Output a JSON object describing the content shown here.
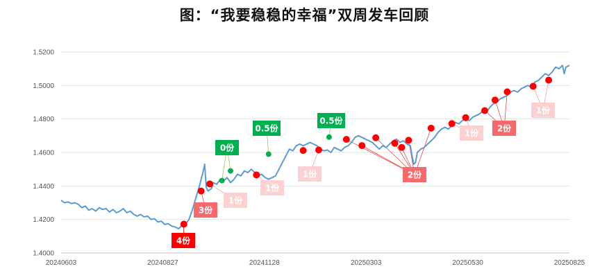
{
  "title": "图：“我要稳稳的幸福”双周发车回顾",
  "chart_data": {
    "type": "line",
    "ylim": [
      1.4,
      1.52
    ],
    "yticks": [
      "1.4000",
      "1.4200",
      "1.4400",
      "1.4600",
      "1.4800",
      "1.5000",
      "1.5200"
    ],
    "xticks": [
      "20240603",
      "20240827",
      "20241128",
      "20250303",
      "20250530",
      "20250825"
    ],
    "grid": "horizontal",
    "colors": {
      "line": "#5b9bd5",
      "buy": "#ff0000",
      "sell": "#00b050"
    },
    "series": [
      {
        "values": [
          [
            0,
            1.4315
          ],
          [
            2,
            1.43
          ],
          [
            4,
            1.4305
          ],
          [
            6,
            1.4295
          ],
          [
            8,
            1.43
          ],
          [
            10,
            1.429
          ],
          [
            12,
            1.427
          ],
          [
            14,
            1.428
          ],
          [
            16,
            1.4255
          ],
          [
            18,
            1.4265
          ],
          [
            20,
            1.425
          ],
          [
            22,
            1.427
          ],
          [
            24,
            1.426
          ],
          [
            26,
            1.4265
          ],
          [
            28,
            1.4245
          ],
          [
            30,
            1.426
          ],
          [
            32,
            1.424
          ],
          [
            34,
            1.425
          ],
          [
            36,
            1.4265
          ],
          [
            38,
            1.424
          ],
          [
            40,
            1.425
          ],
          [
            42,
            1.423
          ],
          [
            44,
            1.422
          ],
          [
            46,
            1.423
          ],
          [
            48,
            1.4215
          ],
          [
            50,
            1.422
          ],
          [
            52,
            1.42
          ],
          [
            54,
            1.4205
          ],
          [
            56,
            1.4185
          ],
          [
            58,
            1.419
          ],
          [
            60,
            1.417
          ],
          [
            62,
            1.4175
          ],
          [
            64,
            1.416
          ],
          [
            66,
            1.4155
          ],
          [
            68,
            1.4145
          ],
          [
            70,
            1.4165
          ],
          [
            72,
            1.4175
          ],
          [
            74,
            1.42
          ],
          [
            76,
            1.426
          ],
          [
            78,
            1.433
          ],
          [
            80,
            1.44
          ],
          [
            82,
            1.448
          ],
          [
            83,
            1.453
          ],
          [
            84,
            1.439
          ],
          [
            85,
            1.437
          ],
          [
            87,
            1.4385
          ],
          [
            88,
            1.442
          ],
          [
            90,
            1.441
          ],
          [
            92,
            1.444
          ],
          [
            94,
            1.443
          ],
          [
            96,
            1.445
          ],
          [
            98,
            1.442
          ],
          [
            100,
            1.444
          ],
          [
            102,
            1.447
          ],
          [
            104,
            1.446
          ],
          [
            106,
            1.449
          ],
          [
            108,
            1.448
          ],
          [
            110,
            1.45
          ],
          [
            112,
            1.448
          ],
          [
            114,
            1.446
          ],
          [
            116,
            1.447
          ],
          [
            118,
            1.445
          ],
          [
            120,
            1.444
          ],
          [
            122,
            1.445
          ],
          [
            124,
            1.446
          ],
          [
            126,
            1.45
          ],
          [
            128,
            1.454
          ],
          [
            130,
            1.458
          ],
          [
            132,
            1.462
          ],
          [
            134,
            1.461
          ],
          [
            136,
            1.464
          ],
          [
            138,
            1.465
          ],
          [
            140,
            1.464
          ],
          [
            142,
            1.465
          ],
          [
            144,
            1.466
          ],
          [
            146,
            1.465
          ],
          [
            148,
            1.464
          ],
          [
            150,
            1.462
          ],
          [
            152,
            1.461
          ],
          [
            154,
            1.4615
          ],
          [
            156,
            1.46
          ],
          [
            158,
            1.463
          ],
          [
            160,
            1.462
          ],
          [
            162,
            1.461
          ],
          [
            164,
            1.463
          ],
          [
            166,
            1.464
          ],
          [
            168,
            1.466
          ],
          [
            170,
            1.469
          ],
          [
            172,
            1.47
          ],
          [
            174,
            1.469
          ],
          [
            176,
            1.468
          ],
          [
            178,
            1.467
          ],
          [
            180,
            1.466
          ],
          [
            182,
            1.464
          ],
          [
            184,
            1.462
          ],
          [
            186,
            1.464
          ],
          [
            188,
            1.463
          ],
          [
            190,
            1.465
          ],
          [
            192,
            1.467
          ],
          [
            194,
            1.468
          ],
          [
            196,
            1.466
          ],
          [
            198,
            1.467
          ],
          [
            200,
            1.465
          ],
          [
            202,
            1.464
          ],
          [
            203,
            1.458
          ],
          [
            204,
            1.453
          ],
          [
            205,
            1.454
          ],
          [
            206,
            1.46
          ],
          [
            208,
            1.462
          ],
          [
            210,
            1.463
          ],
          [
            212,
            1.465
          ],
          [
            214,
            1.467
          ],
          [
            216,
            1.469
          ],
          [
            218,
            1.472
          ],
          [
            220,
            1.474
          ],
          [
            222,
            1.475
          ],
          [
            224,
            1.474
          ],
          [
            226,
            1.476
          ],
          [
            228,
            1.478
          ],
          [
            230,
            1.477
          ],
          [
            232,
            1.479
          ],
          [
            234,
            1.48
          ],
          [
            236,
            1.479
          ],
          [
            238,
            1.481
          ],
          [
            240,
            1.482
          ],
          [
            242,
            1.483
          ],
          [
            244,
            1.485
          ],
          [
            246,
            1.484
          ],
          [
            248,
            1.487
          ],
          [
            250,
            1.489
          ],
          [
            252,
            1.49
          ],
          [
            254,
            1.492
          ],
          [
            256,
            1.493
          ],
          [
            258,
            1.494
          ],
          [
            260,
            1.496
          ],
          [
            262,
            1.497
          ],
          [
            264,
            1.496
          ],
          [
            266,
            1.498
          ],
          [
            268,
            1.499
          ],
          [
            270,
            1.5
          ],
          [
            272,
            1.499
          ],
          [
            274,
            1.502
          ],
          [
            276,
            1.503
          ],
          [
            278,
            1.505
          ],
          [
            280,
            1.507
          ],
          [
            282,
            1.506
          ],
          [
            284,
            1.508
          ],
          [
            286,
            1.511
          ],
          [
            288,
            1.51
          ],
          [
            290,
            1.512
          ],
          [
            291,
            1.507
          ],
          [
            292,
            1.511
          ],
          [
            294,
            1.512
          ]
        ]
      }
    ],
    "buy_points": [
      [
        71,
        1.4172
      ],
      [
        81,
        1.437
      ],
      [
        86,
        1.4412
      ],
      [
        113,
        1.4466
      ],
      [
        140,
        1.4612
      ],
      [
        149,
        1.4615
      ],
      [
        165,
        1.4678
      ],
      [
        174,
        1.4641
      ],
      [
        182,
        1.4688
      ],
      [
        193,
        1.4655
      ],
      [
        197,
        1.463
      ],
      [
        201,
        1.4673
      ],
      [
        214,
        1.4745
      ],
      [
        226,
        1.4772
      ],
      [
        234,
        1.4808
      ],
      [
        245,
        1.485
      ],
      [
        251,
        1.4913
      ],
      [
        258,
        1.4962
      ],
      [
        273,
        1.4995
      ],
      [
        282,
        1.5032
      ]
    ],
    "sell_points": [
      [
        93,
        1.4432
      ],
      [
        98,
        1.449
      ],
      [
        120,
        1.459
      ],
      [
        155,
        1.4692
      ]
    ],
    "annotations": [
      {
        "label": "4份",
        "style": "red-strong",
        "targets": [
          [
            71,
            1.4172
          ]
        ]
      },
      {
        "label": "3份",
        "style": "red-mid",
        "targets": [
          [
            81,
            1.437
          ]
        ]
      },
      {
        "label": "1份",
        "style": "red-light",
        "targets": [
          [
            86,
            1.4412
          ]
        ]
      },
      {
        "label": "0份",
        "style": "green",
        "targets": [
          [
            93,
            1.4432
          ],
          [
            98,
            1.449
          ]
        ]
      },
      {
        "label": "1份",
        "style": "red-light",
        "targets": [
          [
            113,
            1.4466
          ]
        ]
      },
      {
        "label": "0.5份",
        "style": "green",
        "targets": [
          [
            120,
            1.459
          ]
        ]
      },
      {
        "label": "1份",
        "style": "red-light",
        "targets": [
          [
            149,
            1.4615
          ]
        ]
      },
      {
        "label": "0.5份",
        "style": "green",
        "targets": [
          [
            155,
            1.4692
          ]
        ]
      },
      {
        "label": "2份",
        "style": "red-mid",
        "targets": [
          [
            165,
            1.4678
          ],
          [
            174,
            1.4641
          ],
          [
            182,
            1.4688
          ],
          [
            193,
            1.4655
          ],
          [
            197,
            1.463
          ],
          [
            201,
            1.4673
          ],
          [
            214,
            1.4745
          ]
        ]
      },
      {
        "label": "1份",
        "style": "red-light",
        "targets": [
          [
            226,
            1.4772
          ],
          [
            234,
            1.4808
          ]
        ]
      },
      {
        "label": "2份",
        "style": "red-mid",
        "targets": [
          [
            245,
            1.485
          ],
          [
            251,
            1.4913
          ],
          [
            258,
            1.4962
          ]
        ]
      },
      {
        "label": "1份",
        "style": "red-light",
        "targets": [
          [
            273,
            1.4995
          ],
          [
            282,
            1.5032
          ]
        ]
      }
    ]
  }
}
